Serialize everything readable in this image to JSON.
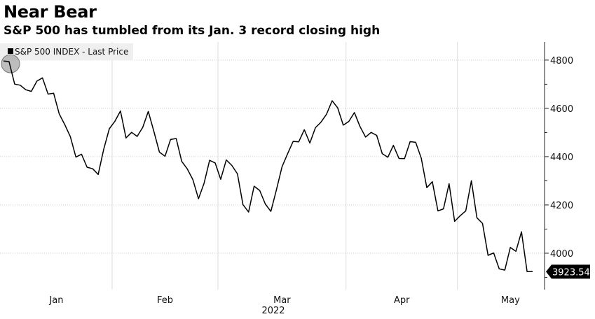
{
  "title": "Near Bear",
  "subtitle": "S&P 500 has tumbled from its Jan. 3 record closing high",
  "chart_data": {
    "type": "line",
    "title": "Near Bear",
    "subtitle": "S&P 500 has tumbled from its Jan. 3 record closing high",
    "legend": {
      "label": "S&P 500 INDEX - Last Price",
      "placement": "top-left"
    },
    "last_value_label": "3923.54",
    "xlabel": "2022",
    "ylabel": "",
    "x_ticks": [
      "Jan",
      "Feb",
      "Mar",
      "Apr",
      "May"
    ],
    "y_ticks": [
      4000,
      4200,
      4400,
      4600,
      4800
    ],
    "ylim": [
      3855,
      4875
    ],
    "grid": true,
    "y_axis_side": "right",
    "line_color": "#000000",
    "highlight": "circle on Jan. 3 record high",
    "series": [
      {
        "name": "S&P 500 INDEX - Last Price",
        "dates": [
          "2022-01-03",
          "2022-01-04",
          "2022-01-05",
          "2022-01-06",
          "2022-01-07",
          "2022-01-10",
          "2022-01-11",
          "2022-01-12",
          "2022-01-13",
          "2022-01-14",
          "2022-01-18",
          "2022-01-19",
          "2022-01-20",
          "2022-01-21",
          "2022-01-24",
          "2022-01-25",
          "2022-01-26",
          "2022-01-27",
          "2022-01-28",
          "2022-01-31",
          "2022-02-01",
          "2022-02-02",
          "2022-02-03",
          "2022-02-04",
          "2022-02-07",
          "2022-02-08",
          "2022-02-09",
          "2022-02-10",
          "2022-02-11",
          "2022-02-14",
          "2022-02-15",
          "2022-02-16",
          "2022-02-17",
          "2022-02-18",
          "2022-02-22",
          "2022-02-23",
          "2022-02-24",
          "2022-02-25",
          "2022-02-28",
          "2022-03-01",
          "2022-03-02",
          "2022-03-03",
          "2022-03-04",
          "2022-03-07",
          "2022-03-08",
          "2022-03-09",
          "2022-03-10",
          "2022-03-11",
          "2022-03-14",
          "2022-03-15",
          "2022-03-16",
          "2022-03-17",
          "2022-03-18",
          "2022-03-21",
          "2022-03-22",
          "2022-03-23",
          "2022-03-24",
          "2022-03-25",
          "2022-03-28",
          "2022-03-29",
          "2022-03-30",
          "2022-03-31",
          "2022-04-01",
          "2022-04-04",
          "2022-04-05",
          "2022-04-06",
          "2022-04-07",
          "2022-04-08",
          "2022-04-11",
          "2022-04-12",
          "2022-04-13",
          "2022-04-14",
          "2022-04-18",
          "2022-04-19",
          "2022-04-20",
          "2022-04-21",
          "2022-04-22",
          "2022-04-25",
          "2022-04-26",
          "2022-04-27",
          "2022-04-28",
          "2022-04-29",
          "2022-05-02",
          "2022-05-03",
          "2022-05-04",
          "2022-05-05",
          "2022-05-06",
          "2022-05-09",
          "2022-05-10",
          "2022-05-11",
          "2022-05-12",
          "2022-05-13",
          "2022-05-16",
          "2022-05-17",
          "2022-05-18",
          "2022-05-19"
        ],
        "values": [
          4796.56,
          4793.54,
          4700.58,
          4696.05,
          4677.03,
          4670.29,
          4713.07,
          4726.35,
          4659.03,
          4662.85,
          4577.11,
          4532.76,
          4482.73,
          4397.94,
          4410.13,
          4356.45,
          4349.93,
          4326.51,
          4431.85,
          4515.55,
          4546.54,
          4589.38,
          4477.44,
          4500.53,
          4483.87,
          4521.54,
          4587.18,
          4504.08,
          4418.64,
          4401.67,
          4471.07,
          4475.01,
          4380.26,
          4348.87,
          4304.76,
          4225.5,
          4288.7,
          4384.65,
          4373.94,
          4306.26,
          4386.54,
          4363.49,
          4328.87,
          4201.09,
          4170.7,
          4277.88,
          4259.52,
          4204.31,
          4173.11,
          4262.45,
          4357.86,
          4411.67,
          4463.12,
          4461.18,
          4511.61,
          4456.24,
          4520.16,
          4543.06,
          4575.52,
          4631.6,
          4602.45,
          4530.41,
          4545.86,
          4582.64,
          4525.12,
          4481.15,
          4500.21,
          4488.28,
          4412.53,
          4397.45,
          4446.59,
          4392.59,
          4391.69,
          4462.21,
          4459.45,
          4393.66,
          4271.78,
          4296.12,
          4175.2,
          4183.96,
          4287.5,
          4131.93,
          4155.38,
          4175.48,
          4300.17,
          4146.87,
          4123.34,
          3991.24,
          4001.05,
          3935.18,
          3930.08,
          4023.89,
          4008.01,
          4088.85,
          3923.68,
          3923.54
        ]
      }
    ]
  }
}
